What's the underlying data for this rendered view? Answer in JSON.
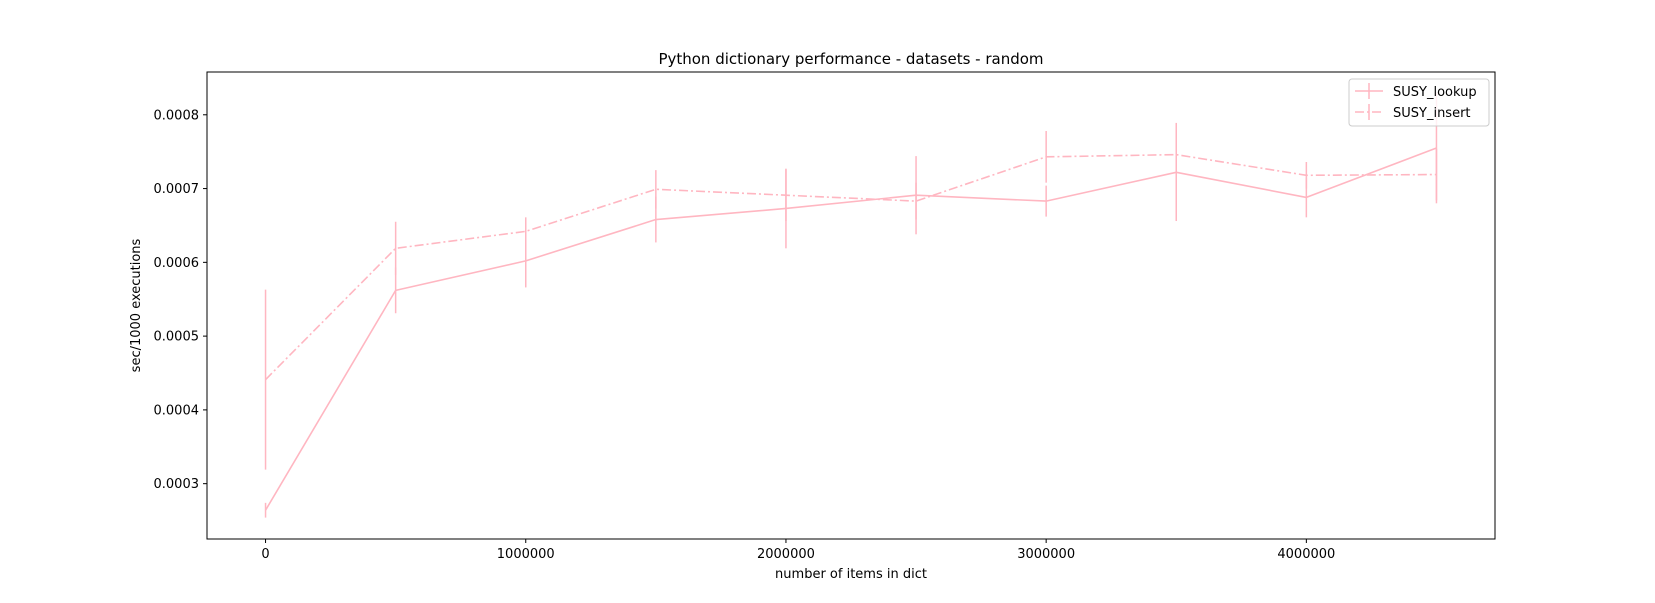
{
  "chart_data": {
    "type": "line",
    "title": "Python dictionary performance - datasets - random",
    "xlabel": "number of items in dict",
    "ylabel": "sec/1000 executions",
    "xlim": [
      -225000,
      4725000
    ],
    "ylim": [
      0.000225,
      0.000858
    ],
    "x": [
      0,
      500000,
      1000000,
      1500000,
      2000000,
      2500000,
      3000000,
      3500000,
      4000000,
      4500000
    ],
    "xticks": [
      0,
      1000000,
      2000000,
      3000000,
      4000000
    ],
    "xtick_labels": [
      "0",
      "1000000",
      "2000000",
      "3000000",
      "4000000"
    ],
    "yticks": [
      0.0003,
      0.0004,
      0.0005,
      0.0006,
      0.0007,
      0.0008
    ],
    "ytick_labels": [
      "0.0003",
      "0.0004",
      "0.0005",
      "0.0006",
      "0.0007",
      "0.0008"
    ],
    "grid": false,
    "legend_position": "top-right",
    "series": [
      {
        "name": "SUSY_lookup",
        "color": "#ffb6c1",
        "linestyle": "solid",
        "values": [
          0.000264,
          0.000562,
          0.000602,
          0.000658,
          0.000673,
          0.000691,
          0.000683,
          0.000722,
          0.000688,
          0.000755
        ],
        "errors": [
          1e-05,
          3.1e-05,
          3.6e-05,
          3.1e-05,
          5.4e-05,
          5.3e-05,
          2.1e-05,
          6.6e-05,
          2.7e-05,
          7.5e-05
        ]
      },
      {
        "name": "SUSY_insert",
        "color": "#ffb6c1",
        "linestyle": "dashdot",
        "values": [
          0.000441,
          0.000619,
          0.000642,
          0.000699,
          0.000691,
          0.000683,
          0.000743,
          0.000746,
          0.000718,
          0.000719
        ],
        "errors": [
          0.000122,
          3.6e-05,
          1.9e-05,
          2.6e-05,
          3.5e-05,
          2.5e-05,
          3.5e-05,
          4.3e-05,
          1.8e-05,
          3.5e-05
        ]
      }
    ]
  }
}
